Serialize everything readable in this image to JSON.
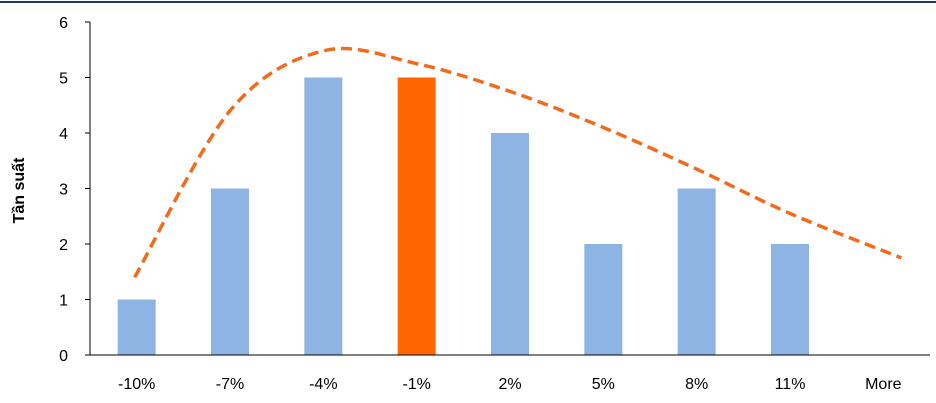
{
  "chart_data": {
    "type": "bar",
    "ylabel": "Tần suất",
    "xlabel": "",
    "title": "",
    "categories": [
      "-10%",
      "-7%",
      "-4%",
      "-1%",
      "2%",
      "5%",
      "8%",
      "11%",
      "More"
    ],
    "values": [
      1,
      3,
      5,
      5,
      4,
      2,
      3,
      2,
      0
    ],
    "ylim": [
      0,
      6
    ],
    "yticks": [
      "0",
      "1",
      "2",
      "3",
      "4",
      "5",
      "6"
    ],
    "highlight_category": "-1%",
    "grid": false,
    "legend": "none",
    "curve": {
      "type": "dashed-line",
      "x": [
        "-10%",
        "-7%",
        "-4%",
        "-1%",
        "2%",
        "5%",
        "8%",
        "11%",
        "More"
      ],
      "values": [
        1.4,
        4.4,
        5.48,
        5.25,
        4.75,
        4.1,
        3.35,
        2.55,
        1.75
      ]
    },
    "colors": {
      "bar": "#8EB4E3",
      "highlight_bar": "#FF6600",
      "curve": "#F26B1D",
      "axis": "#000000",
      "top_rule": "#1F3B5A"
    }
  }
}
